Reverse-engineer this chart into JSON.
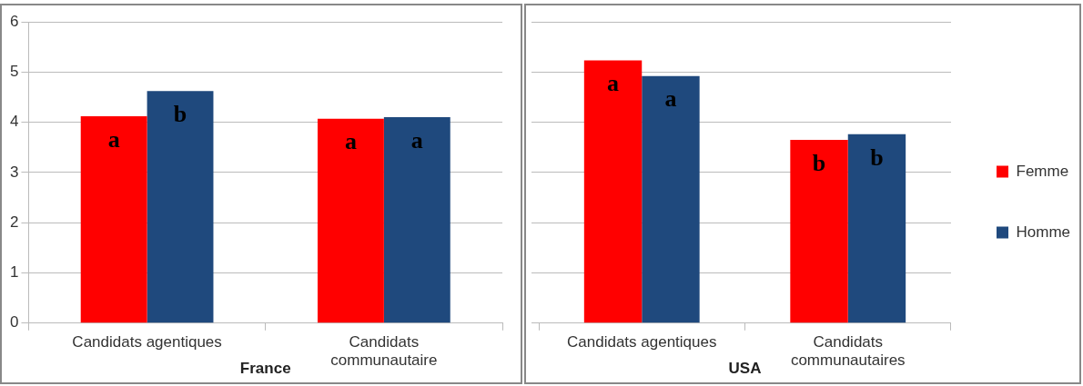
{
  "chart_data": [
    {
      "type": "bar",
      "xlabel": "France",
      "categories": [
        "Candidats agentiques",
        "Candidats communautaire"
      ],
      "series": [
        {
          "color": "#ff0000",
          "values": [
            4.12,
            4.07
          ],
          "value_labels": [
            "a",
            "a"
          ]
        },
        {
          "color": "#1f497d",
          "values": [
            4.62,
            4.1
          ],
          "value_labels": [
            "b",
            "a"
          ]
        }
      ],
      "ylim": [
        0,
        6
      ],
      "yticks": [
        0,
        1,
        2,
        3,
        4,
        5,
        6
      ],
      "grid": "y"
    },
    {
      "type": "bar",
      "xlabel": "USA",
      "categories": [
        "Candidats agentiques",
        "Candidats communautaires"
      ],
      "series": [
        {
          "name": "Femme",
          "color": "#ff0000",
          "values": [
            5.23,
            3.65
          ],
          "value_labels": [
            "a",
            "b"
          ]
        },
        {
          "name": "Homme",
          "color": "#1f497d",
          "values": [
            4.92,
            3.76
          ],
          "value_labels": [
            "a",
            "b"
          ]
        }
      ],
      "ylim": [
        0,
        6
      ],
      "yticks": [
        0,
        1,
        2,
        3,
        4,
        5,
        6
      ],
      "grid": "y",
      "legend": "right",
      "tick_labels": "x"
    }
  ]
}
